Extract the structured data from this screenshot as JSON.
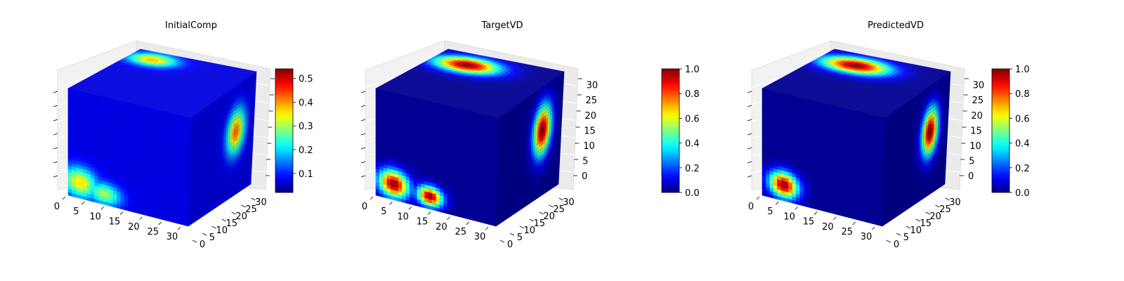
{
  "chart_data": [
    {
      "type": "voxel-3d",
      "title": "InitialComp",
      "colormap": "jet",
      "colorbar": {
        "range": [
          0.02,
          0.54
        ],
        "ticks": [
          "0.1",
          "0.2",
          "0.3",
          "0.4",
          "0.5"
        ]
      },
      "axes": {
        "x": {
          "ticks": [
            "0",
            "5",
            "10",
            "15",
            "20",
            "25",
            "30"
          ],
          "range": [
            0,
            32
          ]
        },
        "y": {
          "ticks": [
            "0",
            "5",
            "10",
            "15",
            "20",
            "25",
            "30"
          ],
          "range": [
            0,
            32
          ]
        },
        "z": {
          "ticks": [],
          "range": [
            0,
            32
          ]
        }
      },
      "blobs": [
        {
          "face": "top",
          "u": 0.2,
          "v": 0.85,
          "ru": 0.28,
          "rv": 0.18,
          "value": 0.38
        },
        {
          "face": "front",
          "u": 0.1,
          "v": 0.15,
          "ru": 0.2,
          "rv": 0.2,
          "value": 0.36
        },
        {
          "face": "front",
          "u": 0.3,
          "v": 0.1,
          "ru": 0.2,
          "rv": 0.15,
          "value": 0.3
        },
        {
          "face": "side",
          "u": 0.72,
          "v": 0.58,
          "ru": 0.2,
          "rv": 0.28,
          "value": 0.42
        }
      ]
    },
    {
      "type": "voxel-3d",
      "title": "TargetVD",
      "colormap": "jet",
      "colorbar": {
        "range": [
          0,
          1
        ],
        "ticks": [
          "0.0",
          "0.2",
          "0.4",
          "0.6",
          "0.8",
          "1.0"
        ]
      },
      "axes": {
        "x": {
          "ticks": [
            "0",
            "5",
            "10",
            "15",
            "20",
            "25",
            "30"
          ],
          "range": [
            0,
            32
          ]
        },
        "y": {
          "ticks": [
            "0",
            "5",
            "10",
            "15",
            "20",
            "25",
            "30"
          ],
          "range": [
            0,
            32
          ]
        },
        "z": {
          "ticks": [
            "0",
            "5",
            "10",
            "15",
            "20",
            "25",
            "30"
          ],
          "range": [
            0,
            32
          ]
        }
      },
      "blobs": [
        {
          "face": "top",
          "u": 0.3,
          "v": 0.78,
          "ru": 0.38,
          "rv": 0.22,
          "value": 1.0
        },
        {
          "face": "front",
          "u": 0.15,
          "v": 0.15,
          "ru": 0.18,
          "rv": 0.18,
          "value": 1.0
        },
        {
          "face": "front",
          "u": 0.45,
          "v": 0.12,
          "ru": 0.15,
          "rv": 0.13,
          "value": 1.0
        },
        {
          "face": "side",
          "u": 0.7,
          "v": 0.6,
          "ru": 0.2,
          "rv": 0.32,
          "value": 1.0
        }
      ]
    },
    {
      "type": "voxel-3d",
      "title": "PredictedVD",
      "colormap": "jet",
      "colorbar": {
        "range": [
          0,
          1
        ],
        "ticks": [
          "0.0",
          "0.2",
          "0.4",
          "0.6",
          "0.8",
          "1.0"
        ]
      },
      "axes": {
        "x": {
          "ticks": [
            "0",
            "5",
            "10",
            "15",
            "20",
            "25",
            "30"
          ],
          "range": [
            0,
            32
          ]
        },
        "y": {
          "ticks": [
            "0",
            "5",
            "10",
            "15",
            "20",
            "25",
            "30"
          ],
          "range": [
            0,
            32
          ]
        },
        "z": {
          "ticks": [
            "0",
            "5",
            "10",
            "15",
            "20",
            "25",
            "30"
          ],
          "range": [
            0,
            32
          ]
        }
      },
      "blobs": [
        {
          "face": "top",
          "u": 0.32,
          "v": 0.78,
          "ru": 0.4,
          "rv": 0.22,
          "value": 1.0
        },
        {
          "face": "front",
          "u": 0.18,
          "v": 0.15,
          "ru": 0.17,
          "rv": 0.17,
          "value": 1.0
        },
        {
          "face": "side",
          "u": 0.72,
          "v": 0.58,
          "ru": 0.18,
          "rv": 0.3,
          "value": 1.0
        }
      ]
    }
  ]
}
